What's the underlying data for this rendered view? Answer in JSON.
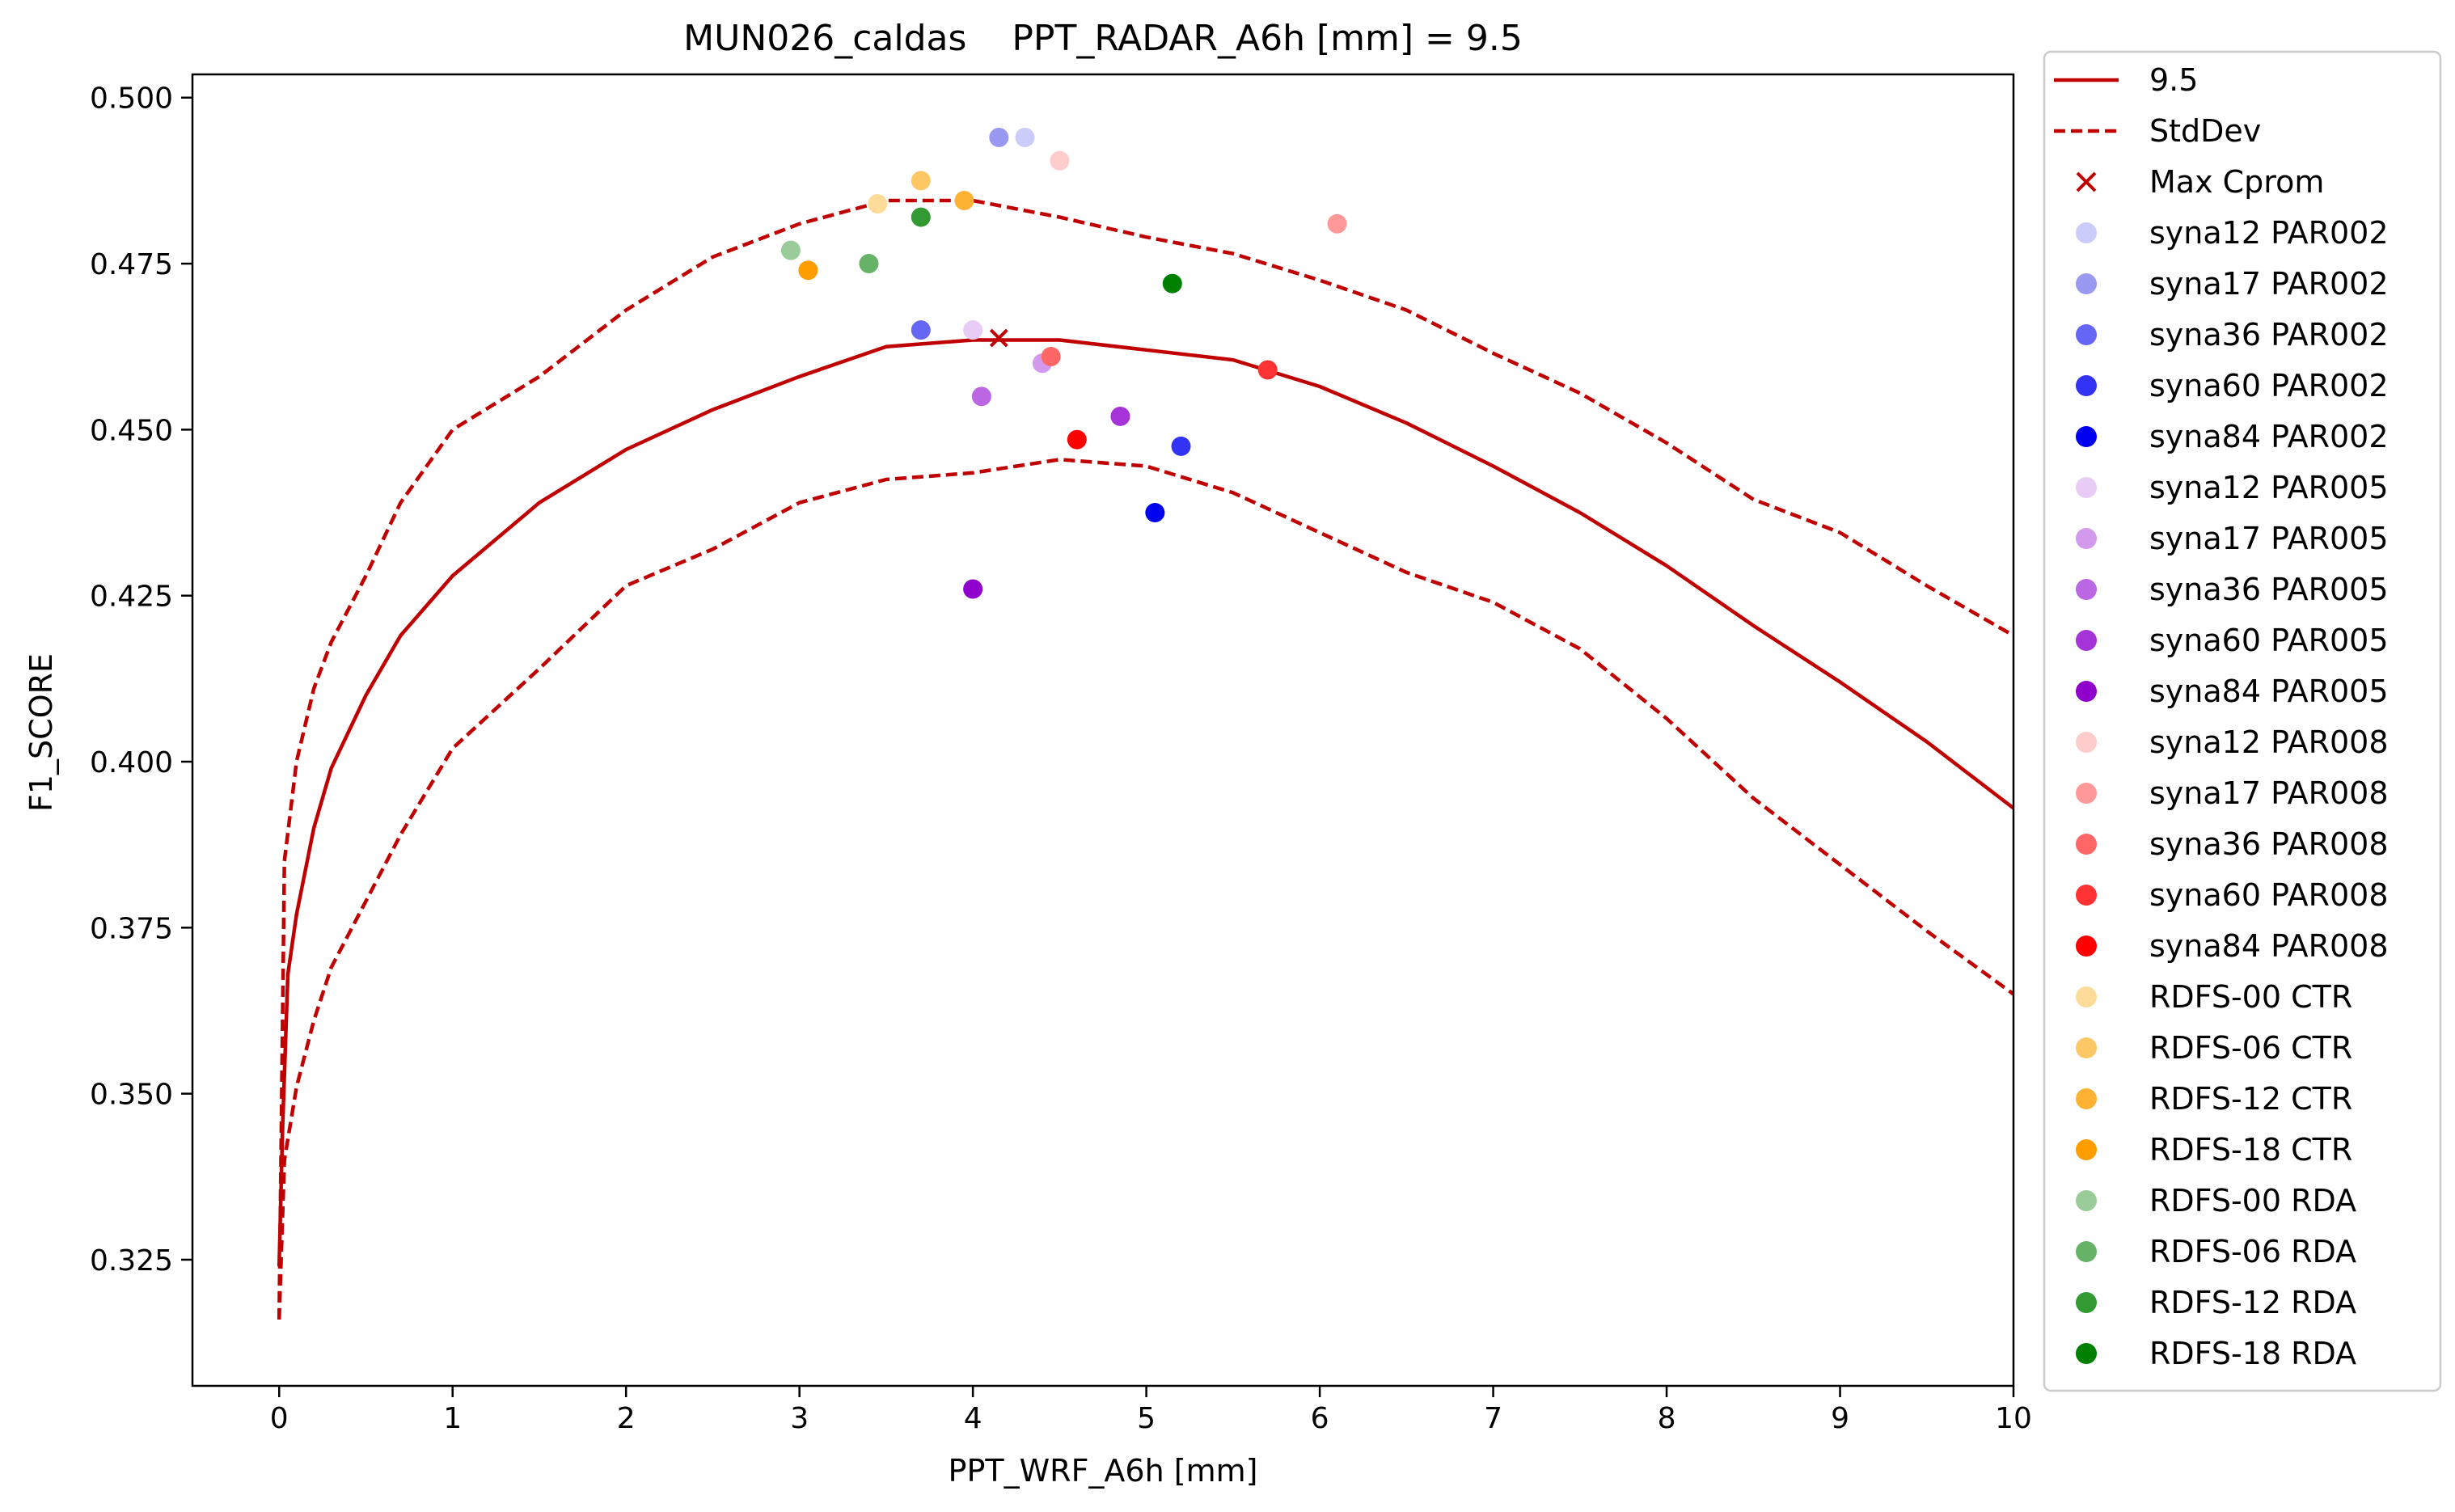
{
  "chart_data": {
    "type": "line",
    "title": "MUN026_caldas    PPT_RADAR_A6h [mm] = 9.5",
    "xlabel": "PPT_WRF_A6h [mm]",
    "ylabel": "F1_SCORE",
    "xlim": [
      -0.5,
      10
    ],
    "ylim": [
      0.306,
      0.5035
    ],
    "x_ticks": [
      0,
      1,
      2,
      3,
      4,
      5,
      6,
      7,
      8,
      9,
      10
    ],
    "y_ticks": [
      0.325,
      0.35,
      0.375,
      0.4,
      0.425,
      0.45,
      0.475,
      0.5
    ],
    "y_tick_labels": [
      "0.325",
      "0.350",
      "0.375",
      "0.400",
      "0.425",
      "0.450",
      "0.475",
      "0.500"
    ],
    "grid": false,
    "legend_position": "outside-right",
    "line_color": "#c00000",
    "curve": {
      "name": "9.5",
      "points": [
        [
          0,
          0.324
        ],
        [
          0.02,
          0.345
        ],
        [
          0.05,
          0.368
        ],
        [
          0.1,
          0.377
        ],
        [
          0.2,
          0.39
        ],
        [
          0.3,
          0.399
        ],
        [
          0.5,
          0.41
        ],
        [
          0.7,
          0.419
        ],
        [
          1.0,
          0.428
        ],
        [
          1.5,
          0.439
        ],
        [
          2.0,
          0.447
        ],
        [
          2.5,
          0.453
        ],
        [
          3.0,
          0.458
        ],
        [
          3.5,
          0.4625
        ],
        [
          4.0,
          0.4635
        ],
        [
          4.5,
          0.4635
        ],
        [
          5.0,
          0.462
        ],
        [
          5.5,
          0.4605
        ],
        [
          6.0,
          0.4565
        ],
        [
          6.5,
          0.451
        ],
        [
          7.0,
          0.4445
        ],
        [
          7.5,
          0.4375
        ],
        [
          8.0,
          0.4295
        ],
        [
          8.5,
          0.4205
        ],
        [
          9.0,
          0.412
        ],
        [
          9.5,
          0.403
        ],
        [
          10.0,
          0.393
        ]
      ]
    },
    "stddev_upper": {
      "name": "StdDev",
      "points": [
        [
          0,
          0.316
        ],
        [
          0.03,
          0.385
        ],
        [
          0.1,
          0.4
        ],
        [
          0.2,
          0.411
        ],
        [
          0.3,
          0.418
        ],
        [
          0.5,
          0.428
        ],
        [
          0.7,
          0.439
        ],
        [
          1.0,
          0.45
        ],
        [
          1.5,
          0.458
        ],
        [
          2.0,
          0.468
        ],
        [
          2.5,
          0.476
        ],
        [
          3.0,
          0.481
        ],
        [
          3.5,
          0.4845
        ],
        [
          4.0,
          0.4845
        ],
        [
          4.5,
          0.482
        ],
        [
          5.0,
          0.479
        ],
        [
          5.5,
          0.4765
        ],
        [
          6.0,
          0.4725
        ],
        [
          6.5,
          0.468
        ],
        [
          7.0,
          0.4615
        ],
        [
          7.5,
          0.4555
        ],
        [
          8.0,
          0.448
        ],
        [
          8.5,
          0.4395
        ],
        [
          9.0,
          0.4345
        ],
        [
          9.5,
          0.4265
        ],
        [
          10.0,
          0.419
        ]
      ]
    },
    "stddev_lower": {
      "name": "StdDev",
      "points": [
        [
          0,
          0.316
        ],
        [
          0.03,
          0.34
        ],
        [
          0.1,
          0.351
        ],
        [
          0.2,
          0.361
        ],
        [
          0.3,
          0.369
        ],
        [
          0.5,
          0.379
        ],
        [
          0.7,
          0.389
        ],
        [
          1.0,
          0.402
        ],
        [
          1.5,
          0.414
        ],
        [
          2.0,
          0.4265
        ],
        [
          2.5,
          0.432
        ],
        [
          3.0,
          0.439
        ],
        [
          3.5,
          0.4425
        ],
        [
          4.0,
          0.4435
        ],
        [
          4.5,
          0.4455
        ],
        [
          5.0,
          0.4445
        ],
        [
          5.5,
          0.4405
        ],
        [
          6.0,
          0.4345
        ],
        [
          6.5,
          0.4285
        ],
        [
          7.0,
          0.424
        ],
        [
          7.5,
          0.417
        ],
        [
          8.0,
          0.4065
        ],
        [
          8.5,
          0.3945
        ],
        [
          9.0,
          0.3845
        ],
        [
          9.5,
          0.3745
        ],
        [
          10.0,
          0.365
        ]
      ]
    },
    "max_point": {
      "name": "Max Cprom",
      "x": 4.15,
      "y": 0.4638
    },
    "series": [
      {
        "name": "syna12 PAR002",
        "color": "#ccccfa",
        "x": 4.3,
        "y": 0.494
      },
      {
        "name": "syna17 PAR002",
        "color": "#9999f2",
        "x": 4.15,
        "y": 0.494
      },
      {
        "name": "syna36 PAR002",
        "color": "#6666f5",
        "x": 3.7,
        "y": 0.465
      },
      {
        "name": "syna60 PAR002",
        "color": "#3333f5",
        "x": 5.2,
        "y": 0.4475
      },
      {
        "name": "syna84 PAR002",
        "color": "#0000f0",
        "x": 5.05,
        "y": 0.4375
      },
      {
        "name": "syna12 PAR005",
        "color": "#e8ccf5",
        "x": 4.0,
        "y": 0.465
      },
      {
        "name": "syna17 PAR005",
        "color": "#d299ec",
        "x": 4.4,
        "y": 0.46
      },
      {
        "name": "syna36 PAR005",
        "color": "#bb66e2",
        "x": 4.05,
        "y": 0.455
      },
      {
        "name": "syna60 PAR005",
        "color": "#a533d8",
        "x": 4.85,
        "y": 0.452
      },
      {
        "name": "syna84 PAR005",
        "color": "#8f00cc",
        "x": 4.0,
        "y": 0.426
      },
      {
        "name": "syna12 PAR008",
        "color": "#ffcccc",
        "x": 4.5,
        "y": 0.4905
      },
      {
        "name": "syna17 PAR008",
        "color": "#ff9999",
        "x": 6.1,
        "y": 0.481
      },
      {
        "name": "syna36 PAR008",
        "color": "#ff6666",
        "x": 4.45,
        "y": 0.461
      },
      {
        "name": "syna60 PAR008",
        "color": "#ff3333",
        "x": 5.7,
        "y": 0.459
      },
      {
        "name": "syna84 PAR008",
        "color": "#ff0000",
        "x": 4.6,
        "y": 0.4485
      },
      {
        "name": "RDFS-00 CTR",
        "color": "#fddc99",
        "x": 3.45,
        "y": 0.484
      },
      {
        "name": "RDFS-06 CTR",
        "color": "#fdc766",
        "x": 3.7,
        "y": 0.4875
      },
      {
        "name": "RDFS-12 CTR",
        "color": "#fdb233",
        "x": 3.95,
        "y": 0.4845
      },
      {
        "name": "RDFS-18 CTR",
        "color": "#fd9d00",
        "x": 3.05,
        "y": 0.474
      },
      {
        "name": "RDFS-00 RDA",
        "color": "#99cc99",
        "x": 2.95,
        "y": 0.477
      },
      {
        "name": "RDFS-06 RDA",
        "color": "#66b266",
        "x": 3.4,
        "y": 0.475
      },
      {
        "name": "RDFS-12 RDA",
        "color": "#339933",
        "x": 3.7,
        "y": 0.482
      },
      {
        "name": "RDFS-18 RDA",
        "color": "#008000",
        "x": 5.15,
        "y": 0.472
      }
    ]
  }
}
